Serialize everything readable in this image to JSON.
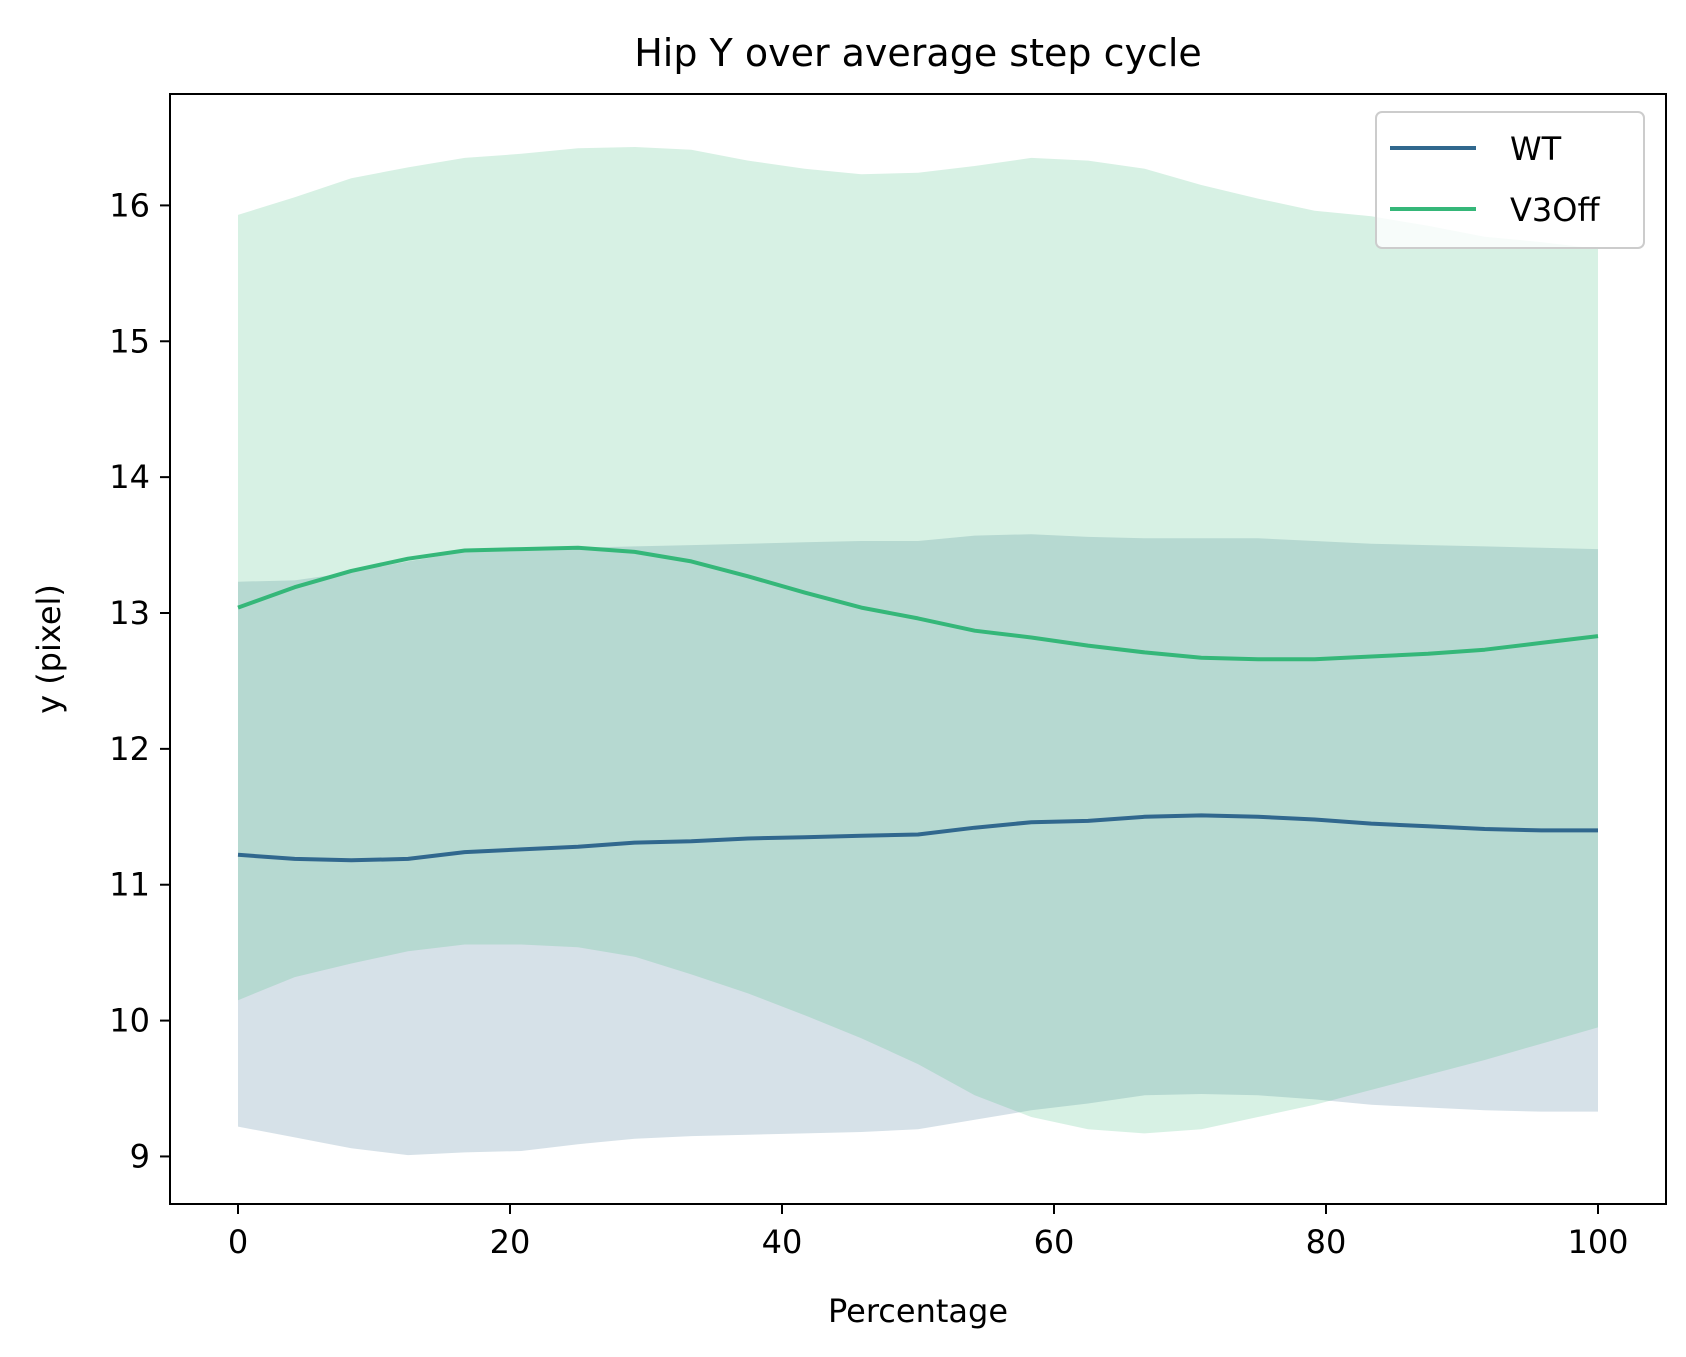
{
  "chart_data": {
    "type": "line",
    "title": "Hip Y over average step cycle",
    "xlabel": "Percentage",
    "ylabel": "y (pixel)",
    "xlim": [
      -5,
      105
    ],
    "ylim": [
      8.65,
      16.82
    ],
    "xticks": [
      0,
      20,
      40,
      60,
      80,
      100
    ],
    "yticks": [
      9,
      10,
      11,
      12,
      13,
      14,
      15,
      16
    ],
    "grid": false,
    "legend_position": "top-right",
    "x": [
      0,
      4.17,
      8.33,
      12.5,
      16.67,
      20.83,
      25,
      29.17,
      33.33,
      37.5,
      41.67,
      45.83,
      50,
      54.17,
      58.33,
      62.5,
      66.67,
      70.83,
      75,
      79.17,
      83.33,
      87.5,
      91.67,
      95.83,
      100
    ],
    "series": [
      {
        "name": "WT",
        "color": "#31688e",
        "band_color": "#d6e0e8",
        "values": [
          11.22,
          11.19,
          11.18,
          11.19,
          11.24,
          11.26,
          11.28,
          11.31,
          11.32,
          11.34,
          11.35,
          11.36,
          11.37,
          11.42,
          11.46,
          11.47,
          11.5,
          11.51,
          11.5,
          11.48,
          11.45,
          11.43,
          11.41,
          11.4,
          11.4
        ],
        "upper": [
          13.23,
          13.24,
          13.3,
          13.38,
          13.45,
          13.47,
          13.48,
          13.49,
          13.5,
          13.51,
          13.52,
          13.53,
          13.53,
          13.57,
          13.58,
          13.56,
          13.55,
          13.55,
          13.55,
          13.53,
          13.51,
          13.5,
          13.49,
          13.48,
          13.47
        ],
        "lower": [
          9.22,
          9.14,
          9.06,
          9.01,
          9.03,
          9.04,
          9.09,
          9.13,
          9.15,
          9.16,
          9.17,
          9.18,
          9.2,
          9.27,
          9.34,
          9.39,
          9.45,
          9.46,
          9.45,
          9.42,
          9.38,
          9.36,
          9.34,
          9.33,
          9.33
        ]
      },
      {
        "name": "V3Off",
        "color": "#35b779",
        "band_color": "#d5efe1",
        "values": [
          13.04,
          13.19,
          13.31,
          13.4,
          13.46,
          13.47,
          13.48,
          13.45,
          13.38,
          13.27,
          13.15,
          13.04,
          12.96,
          12.87,
          12.82,
          12.76,
          12.71,
          12.67,
          12.66,
          12.66,
          12.68,
          12.7,
          12.73,
          12.78,
          12.83
        ],
        "upper": [
          15.93,
          16.06,
          16.2,
          16.28,
          16.35,
          16.38,
          16.42,
          16.43,
          16.41,
          16.33,
          16.27,
          16.23,
          16.24,
          16.29,
          16.35,
          16.33,
          16.27,
          16.15,
          16.05,
          15.96,
          15.92,
          15.85,
          15.77,
          15.73,
          15.68
        ],
        "lower": [
          10.15,
          10.32,
          10.42,
          10.51,
          10.56,
          10.56,
          10.54,
          10.47,
          10.34,
          10.2,
          10.04,
          9.87,
          9.68,
          9.45,
          9.29,
          9.2,
          9.17,
          9.2,
          9.29,
          9.38,
          9.49,
          9.6,
          9.71,
          9.83,
          9.95
        ]
      }
    ]
  }
}
